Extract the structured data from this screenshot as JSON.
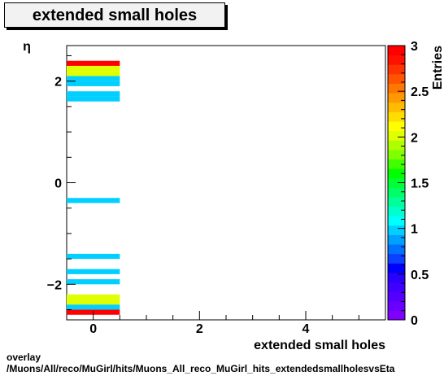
{
  "chart_data": {
    "type": "heatmap",
    "title": "extended small holes",
    "xlabel": "extended small holes",
    "ylabel": "η",
    "zlabel": "Entries",
    "xlim": [
      -0.5,
      5.5
    ],
    "ylim": [
      -2.7,
      2.7
    ],
    "zlim": [
      0,
      3
    ],
    "x_ticks": [
      0,
      2,
      4
    ],
    "y_ticks": [
      -2,
      0,
      2
    ],
    "z_ticks": [
      0,
      0.5,
      1,
      1.5,
      2,
      2.5,
      3
    ],
    "x_tick_labels": [
      "0",
      "2",
      "4"
    ],
    "y_tick_labels": [
      "−2",
      "0",
      "2"
    ],
    "z_tick_labels": [
      "0",
      "0.5",
      "1",
      "1.5",
      "2",
      "2.5",
      "3"
    ],
    "bin_width": 1,
    "eta_bin_height": 0.1,
    "cells": [
      {
        "x": 0,
        "y": 2.35,
        "value": 3
      },
      {
        "x": 0,
        "y": 2.25,
        "value": 2
      },
      {
        "x": 0,
        "y": 2.15,
        "value": 2
      },
      {
        "x": 0,
        "y": 2.05,
        "value": 1
      },
      {
        "x": 0,
        "y": 1.95,
        "value": 1
      },
      {
        "x": 0,
        "y": 1.75,
        "value": 1
      },
      {
        "x": 0,
        "y": 1.65,
        "value": 1
      },
      {
        "x": 0,
        "y": -0.35,
        "value": 1
      },
      {
        "x": 0,
        "y": -1.45,
        "value": 1
      },
      {
        "x": 0,
        "y": -1.75,
        "value": 1
      },
      {
        "x": 0,
        "y": -1.95,
        "value": 1
      },
      {
        "x": 0,
        "y": -2.25,
        "value": 2
      },
      {
        "x": 0,
        "y": -2.35,
        "value": 2
      },
      {
        "x": 0,
        "y": -2.45,
        "value": 1
      },
      {
        "x": 0,
        "y": -2.55,
        "value": 3
      }
    ],
    "palette": [
      "#7f00ff",
      "#6a00ff",
      "#5500ff",
      "#3f00ff",
      "#2a00ff",
      "#0000ff",
      "#0a40ff",
      "#0070ff",
      "#00a0ff",
      "#00cfff",
      "#00ffff",
      "#00ffcc",
      "#00ff99",
      "#00ff66",
      "#00ff33",
      "#00ff00",
      "#40ff00",
      "#80ff00",
      "#b0ff00",
      "#e0ff00",
      "#ffff00",
      "#ffdd00",
      "#ffbb00",
      "#ff9900",
      "#ff7700",
      "#ff5500",
      "#ff3300",
      "#ff1100",
      "#ff0000"
    ]
  },
  "footer": {
    "line1": "overlay",
    "line2": "/Muons/All/reco/MuGirl/hits/Muons_All_reco_MuGirl_hits_extendedsmallholesvsEta"
  }
}
